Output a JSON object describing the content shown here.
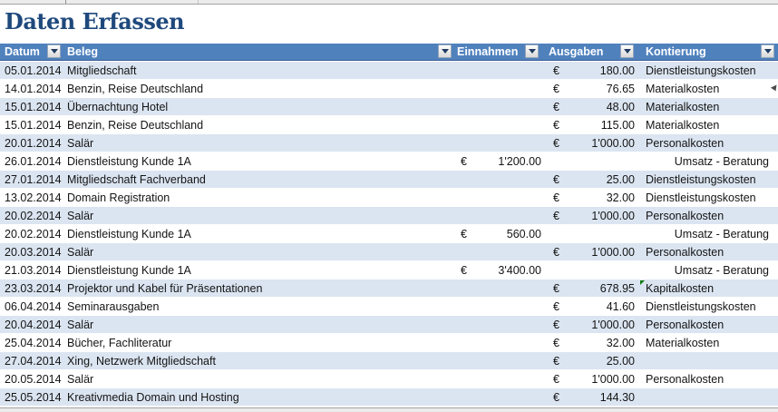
{
  "page": {
    "title": "Daten Erfassen"
  },
  "colors": {
    "header_bg": "#4F81BD",
    "band_blue": "#DBE5F1",
    "title_text": "#1F497D",
    "error_flag": "#0f7b0f"
  },
  "icons": {
    "filter_dropdown": "chevron-down",
    "cell_error_flag": "green-corner-triangle",
    "row_comment_marker": "small-left-arrow"
  },
  "table": {
    "currency_symbol": "€",
    "columns": [
      {
        "key": "datum",
        "label": "Datum"
      },
      {
        "key": "beleg",
        "label": "Beleg"
      },
      {
        "key": "einnahmen",
        "label": "Einnahmen"
      },
      {
        "key": "ausgaben",
        "label": "Ausgaben"
      },
      {
        "key": "kontierung",
        "label": "Kontierung"
      }
    ],
    "rows": [
      {
        "datum": "05.01.2014",
        "beleg": "Mitgliedschaft",
        "einnahmen": "",
        "ausgaben": "180.00",
        "kontierung": "Dienstleistungskosten",
        "kontierung_align": "left",
        "comment_marker": false,
        "error_flag": false
      },
      {
        "datum": "14.01.2014",
        "beleg": "Benzin, Reise Deutschland",
        "einnahmen": "",
        "ausgaben": "76.65",
        "kontierung": "Materialkosten",
        "kontierung_align": "left",
        "comment_marker": true,
        "error_flag": false
      },
      {
        "datum": "15.01.2014",
        "beleg": "Übernachtung Hotel",
        "einnahmen": "",
        "ausgaben": "48.00",
        "kontierung": "Materialkosten",
        "kontierung_align": "left",
        "comment_marker": false,
        "error_flag": false
      },
      {
        "datum": "15.01.2014",
        "beleg": "Benzin, Reise Deutschland",
        "einnahmen": "",
        "ausgaben": "115.00",
        "kontierung": "Materialkosten",
        "kontierung_align": "left",
        "comment_marker": false,
        "error_flag": false
      },
      {
        "datum": "20.01.2014",
        "beleg": "Salär",
        "einnahmen": "",
        "ausgaben": "1'000.00",
        "kontierung": "Personalkosten",
        "kontierung_align": "left",
        "comment_marker": false,
        "error_flag": false
      },
      {
        "datum": "26.01.2014",
        "beleg": "Dienstleistung Kunde 1A",
        "einnahmen": "1'200.00",
        "ausgaben": "",
        "kontierung": "Umsatz - Beratung",
        "kontierung_align": "right",
        "comment_marker": false,
        "error_flag": false
      },
      {
        "datum": "27.01.2014",
        "beleg": "Mitgliedschaft Fachverband",
        "einnahmen": "",
        "ausgaben": "25.00",
        "kontierung": "Dienstleistungskosten",
        "kontierung_align": "left",
        "comment_marker": false,
        "error_flag": false
      },
      {
        "datum": "13.02.2014",
        "beleg": "Domain Registration",
        "einnahmen": "",
        "ausgaben": "32.00",
        "kontierung": "Dienstleistungskosten",
        "kontierung_align": "left",
        "comment_marker": false,
        "error_flag": false
      },
      {
        "datum": "20.02.2014",
        "beleg": "Salär",
        "einnahmen": "",
        "ausgaben": "1'000.00",
        "kontierung": "Personalkosten",
        "kontierung_align": "left",
        "comment_marker": false,
        "error_flag": false
      },
      {
        "datum": "20.02.2014",
        "beleg": "Dienstleistung Kunde 1A",
        "einnahmen": "560.00",
        "ausgaben": "",
        "kontierung": "Umsatz - Beratung",
        "kontierung_align": "right",
        "comment_marker": false,
        "error_flag": false
      },
      {
        "datum": "20.03.2014",
        "beleg": "Salär",
        "einnahmen": "",
        "ausgaben": "1'000.00",
        "kontierung": "Personalkosten",
        "kontierung_align": "left",
        "comment_marker": false,
        "error_flag": false
      },
      {
        "datum": "21.03.2014",
        "beleg": "Dienstleistung Kunde 1A",
        "einnahmen": "3'400.00",
        "ausgaben": "",
        "kontierung": "Umsatz - Beratung",
        "kontierung_align": "right",
        "comment_marker": false,
        "error_flag": false
      },
      {
        "datum": "23.03.2014",
        "beleg": "Projektor und Kabel für Präsentationen",
        "einnahmen": "",
        "ausgaben": "678.95",
        "kontierung": "Kapitalkosten",
        "kontierung_align": "left",
        "comment_marker": false,
        "error_flag": true
      },
      {
        "datum": "06.04.2014",
        "beleg": "Seminarausgaben",
        "einnahmen": "",
        "ausgaben": "41.60",
        "kontierung": "Dienstleistungskosten",
        "kontierung_align": "left",
        "comment_marker": false,
        "error_flag": false
      },
      {
        "datum": "20.04.2014",
        "beleg": "Salär",
        "einnahmen": "",
        "ausgaben": "1'000.00",
        "kontierung": "Personalkosten",
        "kontierung_align": "left",
        "comment_marker": false,
        "error_flag": false
      },
      {
        "datum": "25.04.2014",
        "beleg": "Bücher, Fachliteratur",
        "einnahmen": "",
        "ausgaben": "32.00",
        "kontierung": "Materialkosten",
        "kontierung_align": "left",
        "comment_marker": false,
        "error_flag": false
      },
      {
        "datum": "27.04.2014",
        "beleg": "Xing, Netzwerk Mitgliedschaft",
        "einnahmen": "",
        "ausgaben": "25.00",
        "kontierung": "",
        "kontierung_align": "left",
        "comment_marker": false,
        "error_flag": false
      },
      {
        "datum": "20.05.2014",
        "beleg": "Salär",
        "einnahmen": "",
        "ausgaben": "1'000.00",
        "kontierung": "Personalkosten",
        "kontierung_align": "left",
        "comment_marker": false,
        "error_flag": false
      },
      {
        "datum": "25.05.2014",
        "beleg": "Kreativmedia Domain und Hosting",
        "einnahmen": "",
        "ausgaben": "144.30",
        "kontierung": "",
        "kontierung_align": "left",
        "comment_marker": false,
        "error_flag": false
      }
    ]
  }
}
